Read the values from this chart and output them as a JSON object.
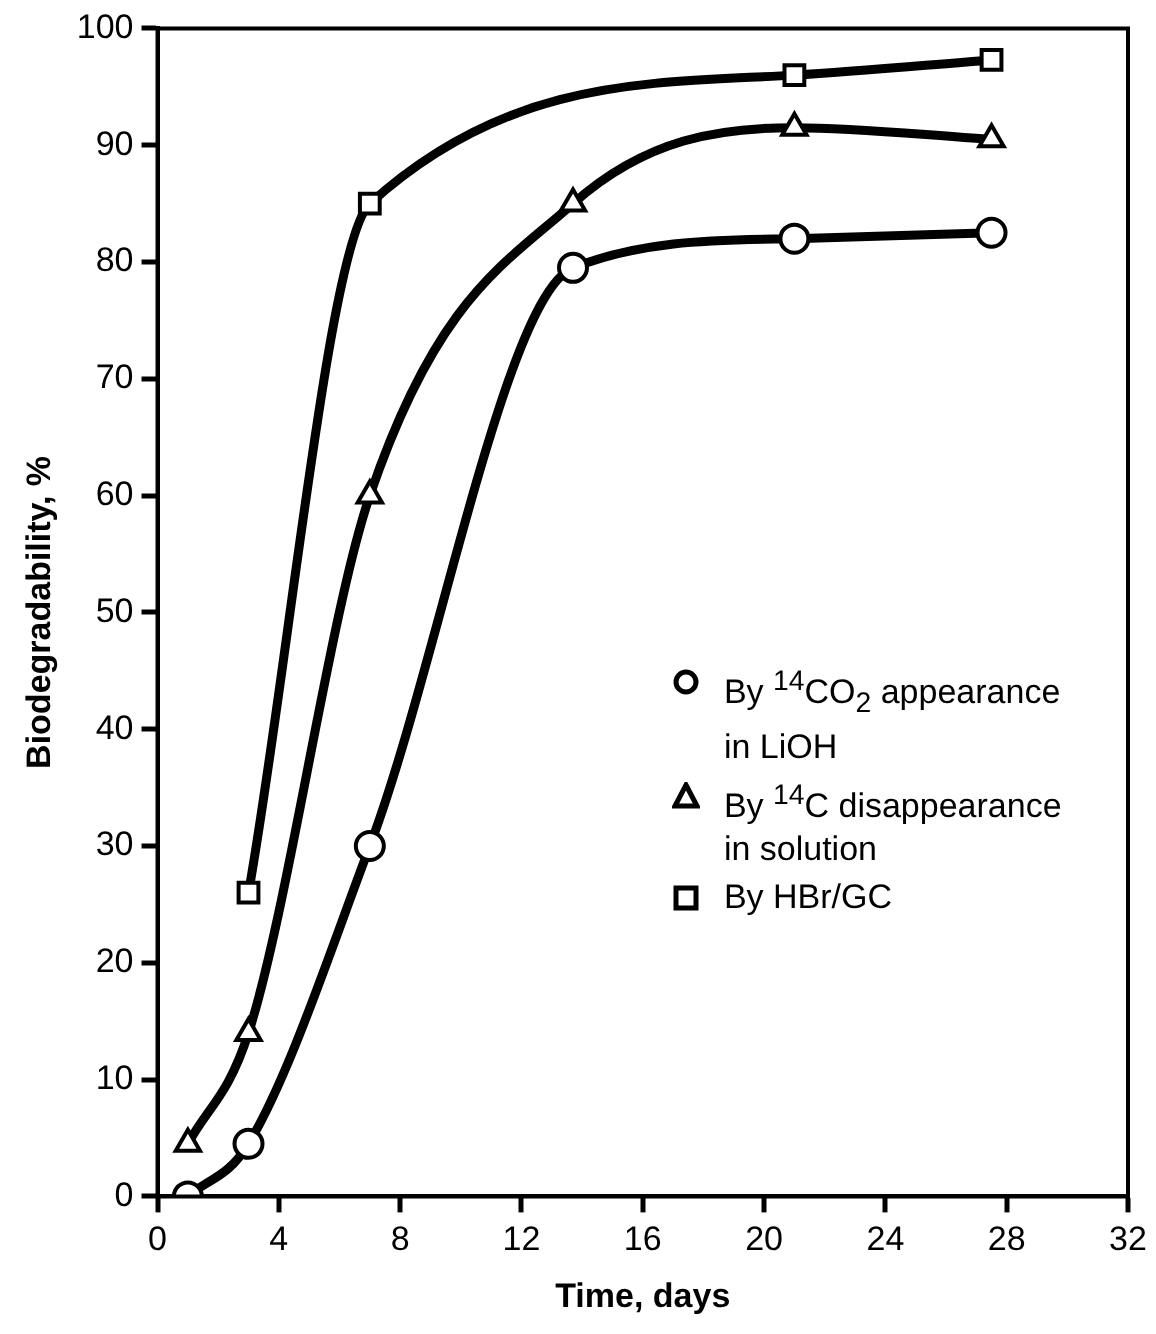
{
  "chart_data": {
    "type": "line",
    "xlabel": "Time, days",
    "ylabel": "Biodegradability, %",
    "xlim": [
      0,
      32
    ],
    "xticks": [
      0,
      4,
      8,
      12,
      16,
      20,
      24,
      28,
      32
    ],
    "ylim": [
      0,
      100
    ],
    "yticks": [
      0,
      10,
      20,
      30,
      40,
      50,
      60,
      70,
      80,
      90,
      100
    ],
    "grid": false,
    "legend": "right",
    "line_style": "solid",
    "series": [
      {
        "name": "By $^{14}$CO$_{2}$ appearance in LiOH",
        "color": "#000000",
        "marker": "circle",
        "x": [
          1,
          3,
          7,
          13.7,
          21,
          27.5
        ],
        "values": [
          0,
          4.5,
          30,
          79.5,
          82,
          82.5
        ]
      },
      {
        "name": "By $^{14}$C disappearance in solution",
        "color": "#000000",
        "marker": "triangle",
        "x": [
          1,
          3,
          7,
          13.7,
          21,
          27.5
        ],
        "values": [
          4.5,
          14,
          60,
          85,
          91.5,
          90.5
        ]
      },
      {
        "name": "By HBr/GC",
        "color": "#000000",
        "marker": "square",
        "x": [
          3,
          7,
          21,
          27.5
        ],
        "values": [
          26,
          85,
          96,
          97.3
        ]
      }
    ]
  }
}
